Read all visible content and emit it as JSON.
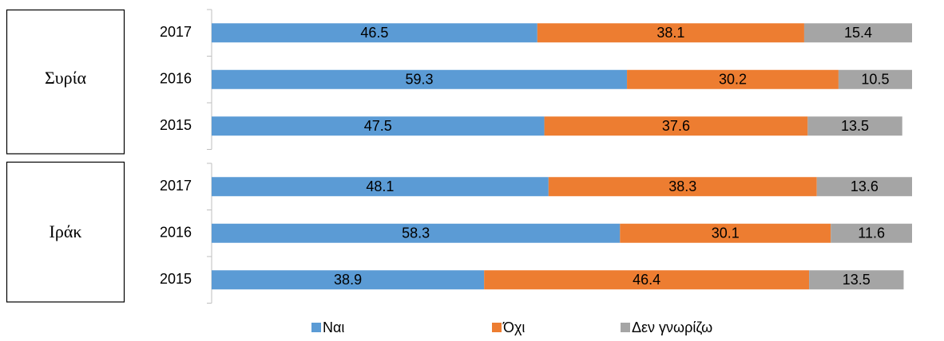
{
  "chart_data": {
    "type": "bar",
    "orientation": "horizontal",
    "stacked": true,
    "groups": [
      {
        "name": "Συρία",
        "categories": [
          "2017",
          "2016",
          "2015"
        ]
      },
      {
        "name": "Ιράκ",
        "categories": [
          "2017",
          "2016",
          "2015"
        ]
      }
    ],
    "xlim": [
      0,
      100
    ],
    "series": [
      {
        "name": "Ναι",
        "color": "#5b9bd5",
        "values": [
          46.5,
          59.3,
          47.5,
          48.1,
          58.3,
          38.9
        ]
      },
      {
        "name": "Όχι",
        "color": "#ed7d31",
        "values": [
          38.1,
          30.2,
          37.6,
          38.3,
          30.1,
          46.4
        ]
      },
      {
        "name": "Δεν γνωρίζω",
        "color": "#a5a5a5",
        "values": [
          15.4,
          10.5,
          13.5,
          13.6,
          11.6,
          13.5
        ]
      }
    ],
    "legend": "bottom"
  }
}
